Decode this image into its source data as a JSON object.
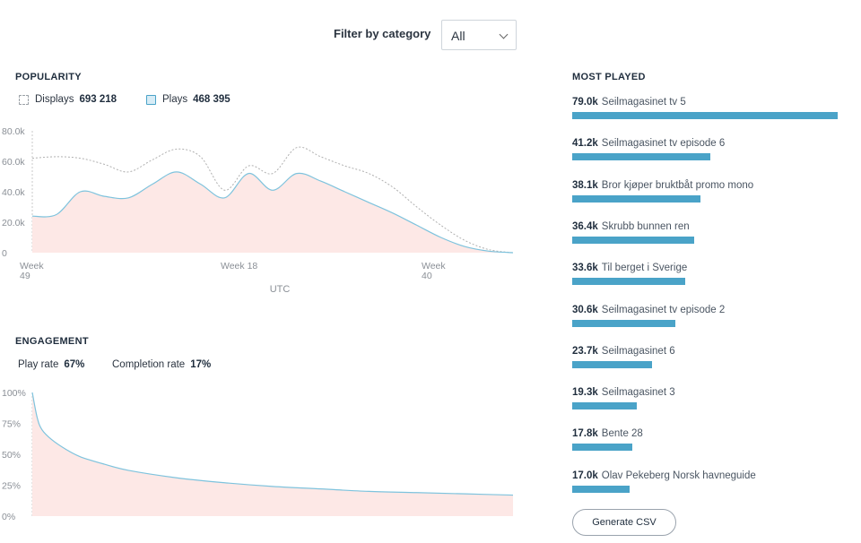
{
  "filter": {
    "label": "Filter by category",
    "value": "All"
  },
  "popularity": {
    "title": "POPULARITY",
    "legend": [
      {
        "name": "Displays",
        "total": "693 218"
      },
      {
        "name": "Plays",
        "total": "468 395"
      }
    ]
  },
  "engagement": {
    "title": "ENGAGEMENT",
    "play_rate_label": "Play rate",
    "play_rate": "67%",
    "completion_rate_label": "Completion rate",
    "completion_rate": "17%"
  },
  "most_played": {
    "title": "MOST PLAYED",
    "items": [
      {
        "count": "79.0k",
        "title": "Seilmagasinet tv 5",
        "value": 79.0
      },
      {
        "count": "41.2k",
        "title": "Seilmagasinet tv episode 6",
        "value": 41.2
      },
      {
        "count": "38.1k",
        "title": "Bror kjøper bruktbåt promo mono",
        "value": 38.1
      },
      {
        "count": "36.4k",
        "title": "Skrubb bunnen ren",
        "value": 36.4
      },
      {
        "count": "33.6k",
        "title": "Til berget i Sverige",
        "value": 33.6
      },
      {
        "count": "30.6k",
        "title": "Seilmagasinet tv episode 2",
        "value": 30.6
      },
      {
        "count": "23.7k",
        "title": "Seilmagasinet 6",
        "value": 23.7
      },
      {
        "count": "19.3k",
        "title": "Seilmagasinet 3",
        "value": 19.3
      },
      {
        "count": "17.8k",
        "title": "Bente 28",
        "value": 17.8
      },
      {
        "count": "17.0k",
        "title": "Olav Pekeberg Norsk havneguide",
        "value": 17.0
      }
    ]
  },
  "csv_button": "Generate CSV",
  "colors": {
    "plays_line": "#7ec3dd",
    "plays_fill": "#fde8e6",
    "displays_line": "#b0b0b0",
    "bar": "#4aa3c8"
  },
  "chart_data": [
    {
      "type": "line",
      "y_ticks": [
        "80.0k",
        "60.0k",
        "40.0k",
        "20.0k",
        "0"
      ],
      "x_ticks": [
        [
          "Week",
          "49"
        ],
        [
          "Week 18"
        ],
        [
          "Week",
          "40"
        ]
      ],
      "xlabel": "UTC",
      "ylim": [
        0,
        80000
      ],
      "x": [
        0,
        5,
        10,
        15,
        20,
        25,
        30,
        35,
        40,
        45,
        50,
        55,
        60,
        65,
        70,
        75,
        80,
        85,
        90,
        95,
        100
      ],
      "series": [
        {
          "name": "Displays",
          "style": "dashed",
          "values": [
            62000,
            63000,
            62000,
            58000,
            53000,
            61000,
            68000,
            63000,
            41000,
            57000,
            52000,
            69000,
            63000,
            57000,
            52000,
            43000,
            30000,
            18000,
            8000,
            2000,
            0
          ]
        },
        {
          "name": "Plays",
          "style": "filled",
          "values": [
            24000,
            25000,
            40000,
            37000,
            36000,
            45000,
            53000,
            45000,
            36000,
            52000,
            41000,
            52000,
            47000,
            40000,
            33000,
            26000,
            18000,
            10000,
            4000,
            1000,
            0
          ]
        }
      ]
    },
    {
      "type": "area",
      "y_ticks": [
        "100%",
        "75%",
        "50%",
        "25%",
        "0%"
      ],
      "ylim": [
        0,
        100
      ],
      "x": [
        0,
        1,
        2,
        4,
        7,
        10,
        15,
        20,
        30,
        40,
        50,
        60,
        70,
        80,
        90,
        100
      ],
      "series": [
        {
          "name": "Completion",
          "values": [
            100,
            80,
            70,
            62,
            54,
            48,
            42,
            37,
            31,
            27,
            24,
            22,
            20,
            19,
            18,
            17
          ]
        }
      ]
    }
  ]
}
